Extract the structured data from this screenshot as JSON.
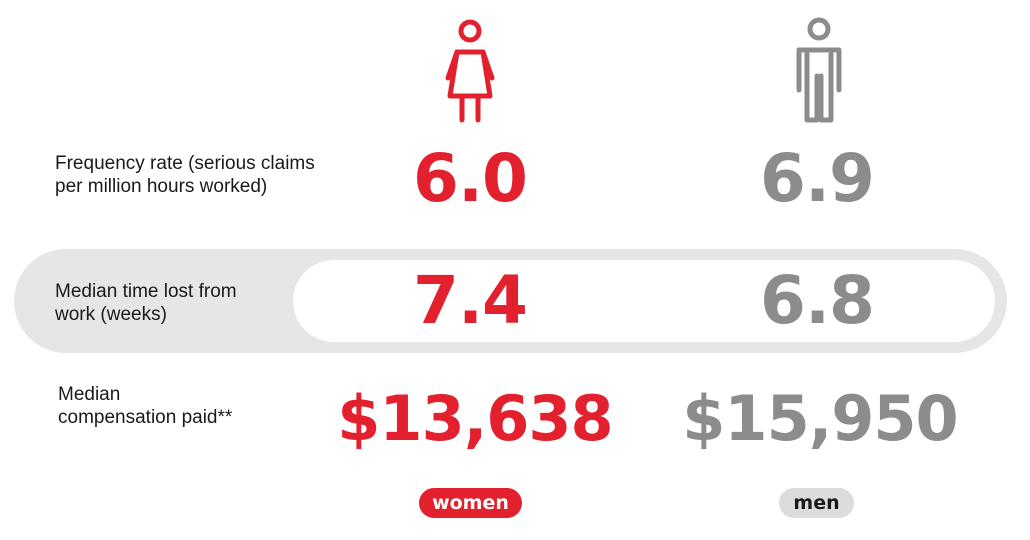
{
  "icons": {
    "women": "woman-figure",
    "men": "man-figure"
  },
  "colors": {
    "women": "#e3202e",
    "men": "#8c8c8c",
    "band": "#e6e6e6"
  },
  "rows": [
    {
      "label_line1": "Frequency rate (serious claims",
      "label_line2": "per million hours worked)",
      "women": "6.0",
      "men": "6.9"
    },
    {
      "label_line1": "Median time lost from",
      "label_line2": "work (weeks)",
      "women": "7.4",
      "men": "6.8"
    },
    {
      "label_line1": "Median",
      "label_line2": "compensation paid**",
      "women": "$13,638",
      "men": "$15,950"
    }
  ],
  "legend": {
    "women": "women",
    "men": "men"
  }
}
